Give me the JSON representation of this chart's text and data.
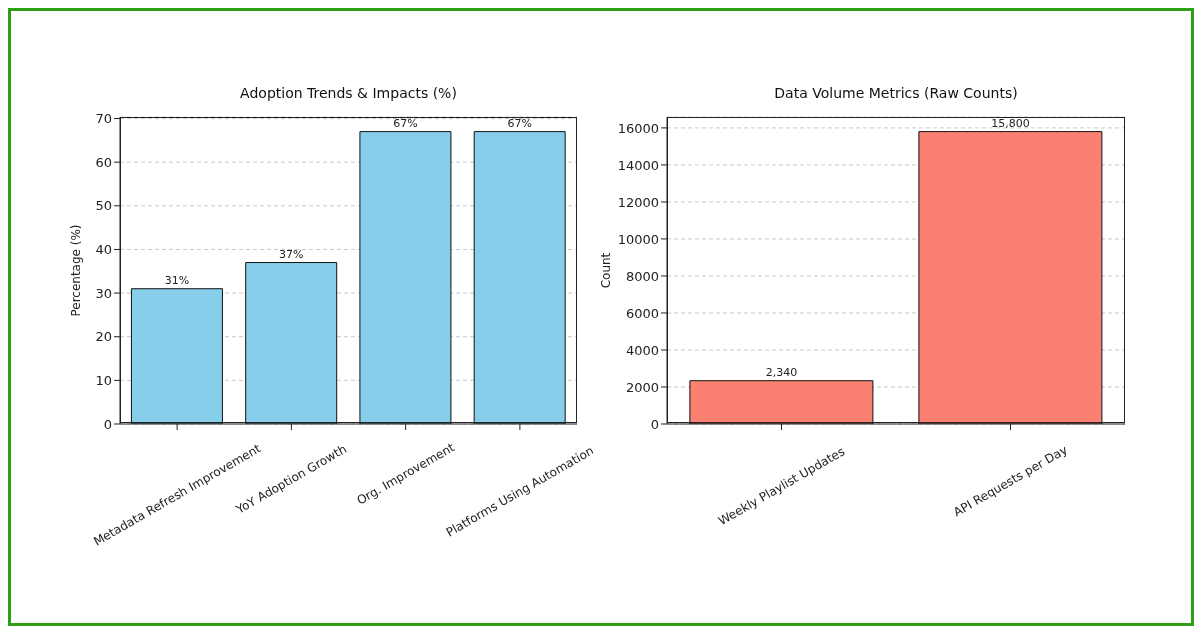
{
  "chart_data": [
    {
      "type": "bar",
      "title": "Adoption Trends & Impacts (%)",
      "ylabel": "Percentage (%)",
      "categories": [
        "Metadata Refresh Improvement",
        "YoY Adoption Growth",
        "Org. Improvement",
        "Platforms Using Automation"
      ],
      "values": [
        31,
        37,
        67,
        67
      ],
      "color": "#87ceeb",
      "value_labels": [
        "31%",
        "37%",
        "67%",
        "67%"
      ],
      "ylim": [
        0,
        70.35
      ],
      "yticks": [
        0,
        10,
        20,
        30,
        40,
        50,
        60,
        70
      ],
      "grid": "y",
      "legend": false
    },
    {
      "type": "bar",
      "title": "Data Volume Metrics (Raw Counts)",
      "ylabel": "Count",
      "categories": [
        "Weekly Playlist Updates",
        "API Requests per Day"
      ],
      "values": [
        2340,
        15800
      ],
      "color": "#fa8072",
      "value_labels": [
        "2,340",
        "15,800"
      ],
      "ylim": [
        0,
        16590
      ],
      "yticks": [
        0,
        2000,
        4000,
        6000,
        8000,
        10000,
        12000,
        14000,
        16000
      ],
      "grid": "y",
      "legend": false
    }
  ]
}
